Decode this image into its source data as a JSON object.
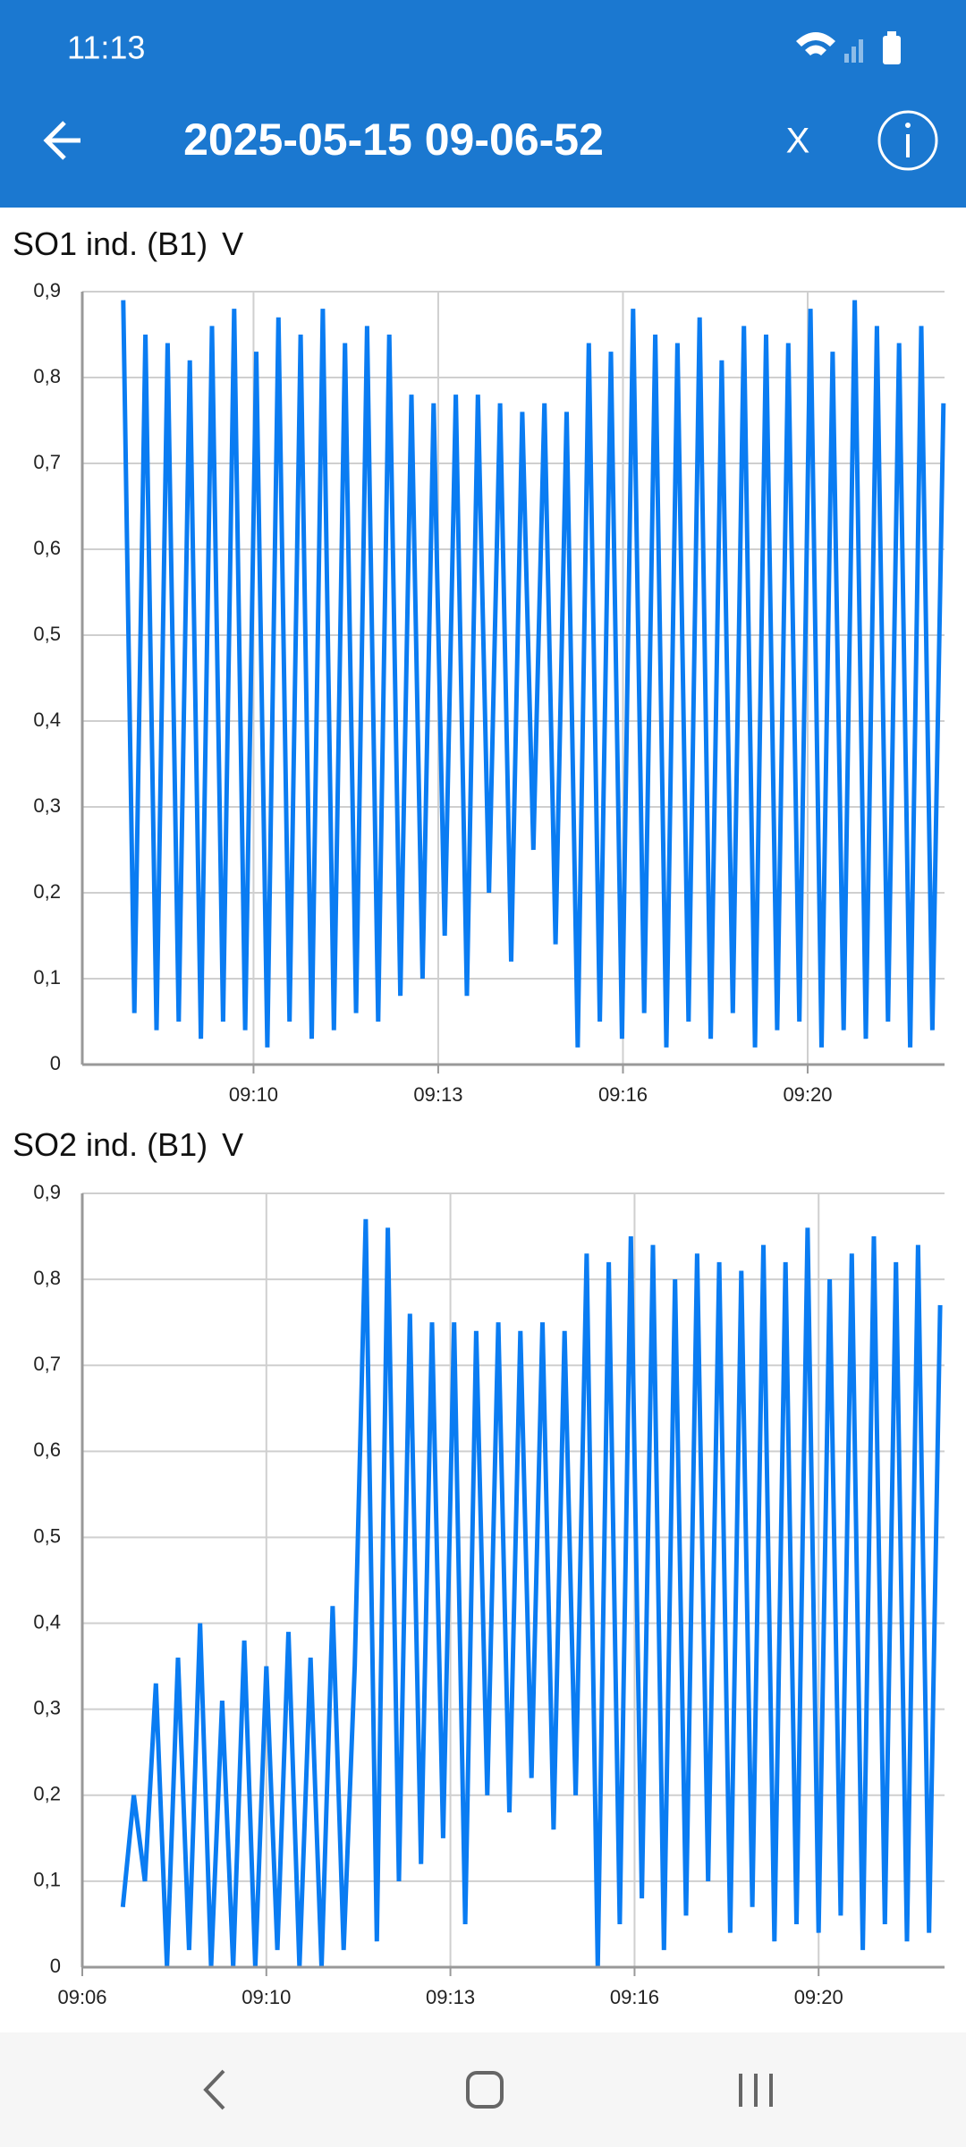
{
  "status_bar": {
    "time": "11:13"
  },
  "header": {
    "title": "2025-05-15 09-06-52",
    "close": "X"
  },
  "chart_data": [
    {
      "type": "line",
      "title": "SO1 ind. (B1)",
      "unit": "V",
      "color": "#0a7cf2",
      "grid": true,
      "xlim": [
        6.91,
        22.47
      ],
      "ylim": [
        0,
        0.9
      ],
      "xticks": [
        {
          "value": 10,
          "label": "09:10"
        },
        {
          "value": 13.333,
          "label": "09:13"
        },
        {
          "value": 16.667,
          "label": "09:16"
        },
        {
          "value": 20,
          "label": "09:20"
        }
      ],
      "yticks": [
        0,
        {
          "value": 0.1,
          "label": "0,1"
        },
        {
          "value": 0.2,
          "label": "0,2"
        },
        {
          "value": 0.3,
          "label": "0,3"
        },
        {
          "value": 0.4,
          "label": "0,4"
        },
        {
          "value": 0.5,
          "label": "0,5"
        },
        {
          "value": 0.6,
          "label": "0,6"
        },
        {
          "value": 0.7,
          "label": "0,7"
        },
        {
          "value": 0.8,
          "label": "0,8"
        },
        {
          "value": 0.9,
          "label": "0,9"
        }
      ],
      "x": [
        7.65,
        7.85,
        8.05,
        8.25,
        8.45,
        8.65,
        8.85,
        9.05,
        9.25,
        9.45,
        9.65,
        9.85,
        10.05,
        10.25,
        10.45,
        10.65,
        10.85,
        11.05,
        11.25,
        11.45,
        11.65,
        11.85,
        12.05,
        12.25,
        12.45,
        12.65,
        12.85,
        13.05,
        13.25,
        13.45,
        13.65,
        13.85,
        14.05,
        14.25,
        14.45,
        14.65,
        14.85,
        15.05,
        15.25,
        15.45,
        15.65,
        15.85,
        16.05,
        16.25,
        16.45,
        16.65,
        16.85,
        17.05,
        17.25,
        17.45,
        17.65,
        17.85,
        18.05,
        18.25,
        18.45,
        18.65,
        18.85,
        19.05,
        19.25,
        19.45,
        19.65,
        19.85,
        20.05,
        20.25,
        20.45,
        20.65,
        20.85,
        21.05,
        21.25,
        21.45,
        21.65,
        21.85,
        22.05,
        22.25,
        22.45
      ],
      "values": [
        0.89,
        0.06,
        0.85,
        0.04,
        0.84,
        0.05,
        0.82,
        0.03,
        0.86,
        0.05,
        0.88,
        0.04,
        0.83,
        0.02,
        0.87,
        0.05,
        0.85,
        0.03,
        0.88,
        0.04,
        0.84,
        0.06,
        0.86,
        0.05,
        0.85,
        0.08,
        0.78,
        0.1,
        0.77,
        0.15,
        0.78,
        0.08,
        0.78,
        0.2,
        0.77,
        0.12,
        0.76,
        0.25,
        0.77,
        0.14,
        0.76,
        0.02,
        0.84,
        0.05,
        0.83,
        0.03,
        0.88,
        0.06,
        0.85,
        0.02,
        0.84,
        0.05,
        0.87,
        0.03,
        0.82,
        0.06,
        0.86,
        0.02,
        0.85,
        0.04,
        0.84,
        0.05,
        0.88,
        0.02,
        0.83,
        0.04,
        0.89,
        0.03,
        0.86,
        0.05,
        0.84,
        0.02,
        0.86,
        0.04,
        0.77
      ]
    },
    {
      "type": "line",
      "title": "SO2 ind. (B1)",
      "unit": "V",
      "color": "#0a7cf2",
      "grid": true,
      "xlim": [
        6.667,
        22.28
      ],
      "ylim": [
        0,
        0.9
      ],
      "xticks": [
        {
          "value": 6.667,
          "label": "09:06"
        },
        {
          "value": 10,
          "label": "09:10"
        },
        {
          "value": 13.333,
          "label": "09:13"
        },
        {
          "value": 16.667,
          "label": "09:16"
        },
        {
          "value": 20,
          "label": "09:20"
        }
      ],
      "yticks": [
        0,
        {
          "value": 0.1,
          "label": "0,1"
        },
        {
          "value": 0.2,
          "label": "0,2"
        },
        {
          "value": 0.3,
          "label": "0,3"
        },
        {
          "value": 0.4,
          "label": "0,4"
        },
        {
          "value": 0.5,
          "label": "0,5"
        },
        {
          "value": 0.6,
          "label": "0,6"
        },
        {
          "value": 0.7,
          "label": "0,7"
        },
        {
          "value": 0.8,
          "label": "0,8"
        },
        {
          "value": 0.9,
          "label": "0,9"
        }
      ],
      "x": [
        7.4,
        7.6,
        7.8,
        8.0,
        8.2,
        8.4,
        8.6,
        8.8,
        9.0,
        9.2,
        9.4,
        9.6,
        9.8,
        10.0,
        10.2,
        10.4,
        10.6,
        10.8,
        11.0,
        11.2,
        11.4,
        11.6,
        11.8,
        12.0,
        12.2,
        12.4,
        12.6,
        12.8,
        13.0,
        13.2,
        13.4,
        13.6,
        13.8,
        14.0,
        14.2,
        14.4,
        14.6,
        14.8,
        15.0,
        15.2,
        15.4,
        15.6,
        15.8,
        16.0,
        16.2,
        16.4,
        16.6,
        16.8,
        17.0,
        17.2,
        17.4,
        17.6,
        17.8,
        18.0,
        18.2,
        18.4,
        18.6,
        18.8,
        19.0,
        19.2,
        19.4,
        19.6,
        19.8,
        20.0,
        20.2,
        20.4,
        20.6,
        20.8,
        21.0,
        21.2,
        21.4,
        21.6,
        21.8,
        22.0,
        22.2
      ],
      "values": [
        0.07,
        0.2,
        0.1,
        0.33,
        0,
        0.36,
        0.02,
        0.4,
        0,
        0.31,
        0,
        0.38,
        0,
        0.35,
        0.02,
        0.39,
        0,
        0.36,
        0,
        0.42,
        0.02,
        0.35,
        0.87,
        0.03,
        0.86,
        0.1,
        0.76,
        0.12,
        0.75,
        0.15,
        0.75,
        0.05,
        0.74,
        0.2,
        0.75,
        0.18,
        0.74,
        0.22,
        0.75,
        0.16,
        0.74,
        0.2,
        0.83,
        0,
        0.82,
        0.05,
        0.85,
        0.08,
        0.84,
        0.02,
        0.8,
        0.06,
        0.83,
        0.1,
        0.82,
        0.04,
        0.81,
        0.07,
        0.84,
        0.03,
        0.82,
        0.05,
        0.86,
        0.04,
        0.8,
        0.06,
        0.83,
        0.02,
        0.85,
        0.05,
        0.82,
        0.03,
        0.84,
        0.04,
        0.77
      ]
    }
  ]
}
